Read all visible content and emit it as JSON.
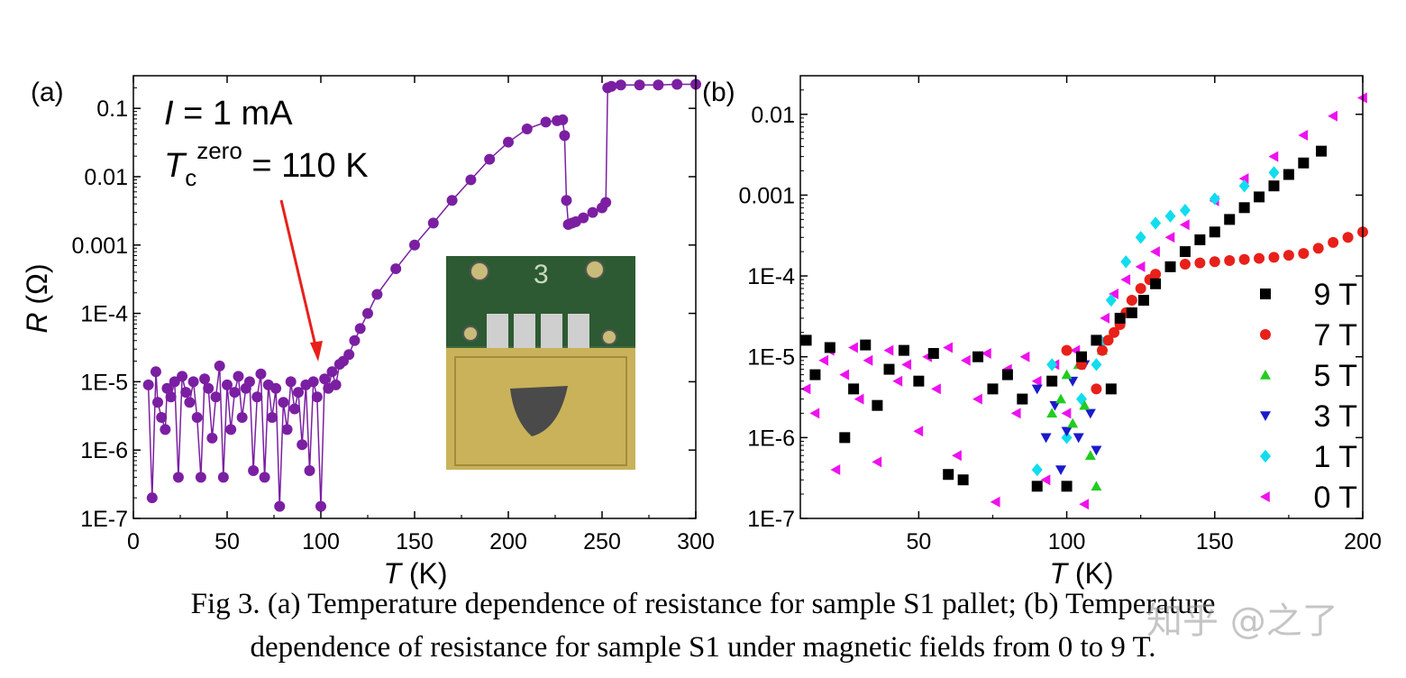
{
  "chart_data": [
    {
      "type": "scatter",
      "panel_label": "(a)",
      "xlabel": "T (K)",
      "ylabel": "R (Ω)",
      "xlim": [
        0,
        300
      ],
      "ylim": [
        1e-07,
        0.3
      ],
      "y_scale": "log",
      "xticks": [
        "0",
        "50",
        "100",
        "150",
        "200",
        "250",
        "300"
      ],
      "yticks": [
        "1E-7",
        "1E-6",
        "1E-5",
        "1E-4",
        "0.001",
        "0.01",
        "0.1"
      ],
      "color": "#7B1FA2",
      "annotations": {
        "current_label": "I = 1 mA",
        "tc_label": "T",
        "tc_sub": "c",
        "tc_sup": "zero",
        "tc_value": " = 110 K"
      },
      "arrow_color": "#E8201A",
      "series": [
        {
          "x": [
            8,
            10,
            12,
            13,
            15,
            17,
            18,
            20,
            22,
            24,
            26,
            28,
            30,
            32,
            34,
            36,
            38,
            40,
            42,
            44,
            46,
            48,
            50,
            52,
            54,
            56,
            58,
            60,
            62,
            64,
            66,
            68,
            70,
            72,
            74,
            76,
            78,
            80,
            82,
            84,
            86,
            88,
            90,
            92,
            94,
            96,
            98,
            100,
            102,
            104,
            106,
            108,
            110,
            112,
            115,
            118,
            121,
            125,
            130,
            140,
            150,
            160,
            170,
            180,
            190,
            200,
            210,
            220,
            226,
            229,
            230,
            231,
            232,
            234,
            236,
            240,
            245,
            250,
            252,
            253,
            255,
            260,
            270,
            280,
            290,
            300
          ],
          "y": [
            9e-06,
            2e-07,
            1.4e-05,
            5e-06,
            3e-06,
            2e-06,
            8e-06,
            6e-06,
            1e-05,
            4e-07,
            1.2e-05,
            7e-06,
            5e-06,
            1e-05,
            3e-06,
            4e-07,
            1.1e-05,
            8e-06,
            1.5e-06,
            6e-06,
            1.7e-05,
            4e-07,
            9e-06,
            2e-06,
            7e-06,
            1.2e-05,
            3e-06,
            8e-06,
            1e-05,
            5e-07,
            6e-06,
            1.3e-05,
            4e-07,
            9e-06,
            3e-06,
            8e-06,
            1.5e-07,
            5e-06,
            2e-06,
            1e-05,
            4e-06,
            7e-06,
            1.2e-06,
            9e-06,
            5e-07,
            1e-05,
            6e-06,
            1.5e-07,
            1.1e-05,
            8e-06,
            1.4e-05,
            9e-06,
            1.8e-05,
            2e-05,
            2.5e-05,
            4e-05,
            6e-05,
            0.0001,
            0.00019,
            0.00045,
            0.001,
            0.0021,
            0.0045,
            0.009,
            0.018,
            0.032,
            0.05,
            0.063,
            0.066,
            0.068,
            0.04,
            0.0045,
            0.002,
            0.0021,
            0.0022,
            0.0025,
            0.003,
            0.0035,
            0.0042,
            0.2,
            0.21,
            0.22,
            0.22,
            0.22,
            0.225,
            0.225
          ]
        }
      ]
    },
    {
      "type": "scatter",
      "panel_label": "(b)",
      "xlabel": "T (K)",
      "xlim": [
        10,
        200
      ],
      "ylim": [
        1e-07,
        0.03
      ],
      "y_scale": "log",
      "xticks": [
        "50",
        "100",
        "150",
        "200"
      ],
      "yticks": [
        "1E-7",
        "1E-6",
        "1E-5",
        "1E-4",
        "0.001",
        "0.01"
      ],
      "legend_position": "right",
      "series": [
        {
          "name": "9 T",
          "color": "#000000",
          "marker": "square",
          "x": [
            12,
            15,
            20,
            25,
            28,
            32,
            36,
            40,
            45,
            50,
            55,
            60,
            65,
            70,
            75,
            80,
            85,
            90,
            95,
            100,
            105,
            110,
            115,
            118,
            122,
            126,
            130,
            135,
            140,
            145,
            150,
            155,
            160,
            165,
            170,
            175,
            180,
            186
          ],
          "y": [
            1.6e-05,
            6e-06,
            1.3e-05,
            1e-06,
            4e-06,
            1.4e-05,
            2.5e-06,
            7e-06,
            1.2e-05,
            5e-06,
            1.1e-05,
            3.5e-07,
            3e-07,
            1e-05,
            4e-06,
            6e-06,
            3e-06,
            2.5e-07,
            5e-06,
            2.5e-07,
            1e-05,
            1.6e-05,
            4e-06,
            3e-05,
            3.5e-05,
            5e-05,
            8e-05,
            0.00013,
            0.0002,
            0.00028,
            0.00035,
            0.0005,
            0.0007,
            0.00095,
            0.0013,
            0.0018,
            0.0025,
            0.0035
          ]
        },
        {
          "name": "7 T",
          "color": "#E8201A",
          "marker": "circle",
          "x": [
            100,
            105,
            110,
            112,
            114,
            116,
            118,
            120,
            122,
            125,
            128,
            130,
            135,
            140,
            145,
            150,
            155,
            160,
            165,
            170,
            175,
            180,
            185,
            190,
            195,
            200
          ],
          "y": [
            1.2e-05,
            8e-06,
            4e-06,
            1.2e-05,
            1.6e-05,
            2e-05,
            2.5e-05,
            3.5e-05,
            5e-05,
            7e-05,
            9e-05,
            0.000105,
            0.00013,
            0.00014,
            0.000145,
            0.00015,
            0.000155,
            0.00016,
            0.000165,
            0.00017,
            0.00018,
            0.00019,
            0.00022,
            0.00026,
            0.0003,
            0.00035
          ]
        },
        {
          "name": "5 T",
          "color": "#22CC22",
          "marker": "triangle-up",
          "x": [
            95,
            98,
            100,
            102,
            104,
            106,
            108,
            110,
            112
          ],
          "y": [
            2e-06,
            3e-06,
            6e-06,
            1.5e-06,
            8e-06,
            2.5e-06,
            6e-07,
            2.5e-07,
            1.2e-05
          ]
        },
        {
          "name": "3 T",
          "color": "#1A1ACC",
          "marker": "triangle-down",
          "x": [
            90,
            93,
            96,
            98,
            100,
            102,
            104,
            106,
            108,
            110
          ],
          "y": [
            4e-06,
            1e-06,
            2.5e-06,
            4e-07,
            1.2e-06,
            5e-06,
            1e-06,
            8e-06,
            2e-06,
            7e-07
          ]
        },
        {
          "name": "1 T",
          "color": "#11DDEE",
          "marker": "diamond",
          "x": [
            90,
            95,
            100,
            105,
            110,
            112,
            115,
            120,
            125,
            130,
            135,
            140,
            150,
            160,
            170
          ],
          "y": [
            4e-07,
            8e-06,
            1e-06,
            3e-06,
            8e-06,
            1.5e-05,
            5e-05,
            0.00015,
            0.0003,
            0.00045,
            0.00055,
            0.00065,
            0.0009,
            0.0013,
            0.0019
          ]
        },
        {
          "name": "0 T",
          "color": "#EE11EE",
          "marker": "triangle-left",
          "x": [
            12,
            15,
            18,
            20,
            22,
            25,
            28,
            30,
            33,
            36,
            40,
            43,
            46,
            50,
            53,
            56,
            60,
            63,
            66,
            70,
            73,
            76,
            80,
            83,
            86,
            90,
            93,
            96,
            100,
            103,
            106,
            110,
            113,
            116,
            120,
            125,
            130,
            135,
            140,
            150,
            160,
            170,
            180,
            190,
            200
          ],
          "y": [
            4e-06,
            2e-06,
            9e-06,
            1.2e-05,
            4e-07,
            6e-06,
            1.3e-05,
            3e-06,
            9e-06,
            5e-07,
            1.2e-05,
            5e-06,
            8e-06,
            1.2e-06,
            1e-05,
            4e-06,
            1.3e-05,
            6e-07,
            9e-06,
            3e-06,
            1.1e-05,
            1.6e-07,
            7e-06,
            2e-06,
            1e-05,
            5e-06,
            3e-07,
            8e-06,
            2e-06,
            1.2e-05,
            1.5e-07,
            1.6e-05,
            3e-05,
            6e-05,
            9e-05,
            0.00013,
            0.0002,
            0.0003,
            0.00043,
            0.00085,
            0.0016,
            0.003,
            0.0055,
            0.0095,
            0.016
          ]
        }
      ]
    }
  ],
  "caption": {
    "line1": "Fig 3. (a) Temperature dependence of resistance for sample S1 pallet; (b) Temperature",
    "line2": "dependence of resistance for sample S1 under magnetic fields from 0 to 9 T."
  },
  "watermark": "知乎 @之了"
}
